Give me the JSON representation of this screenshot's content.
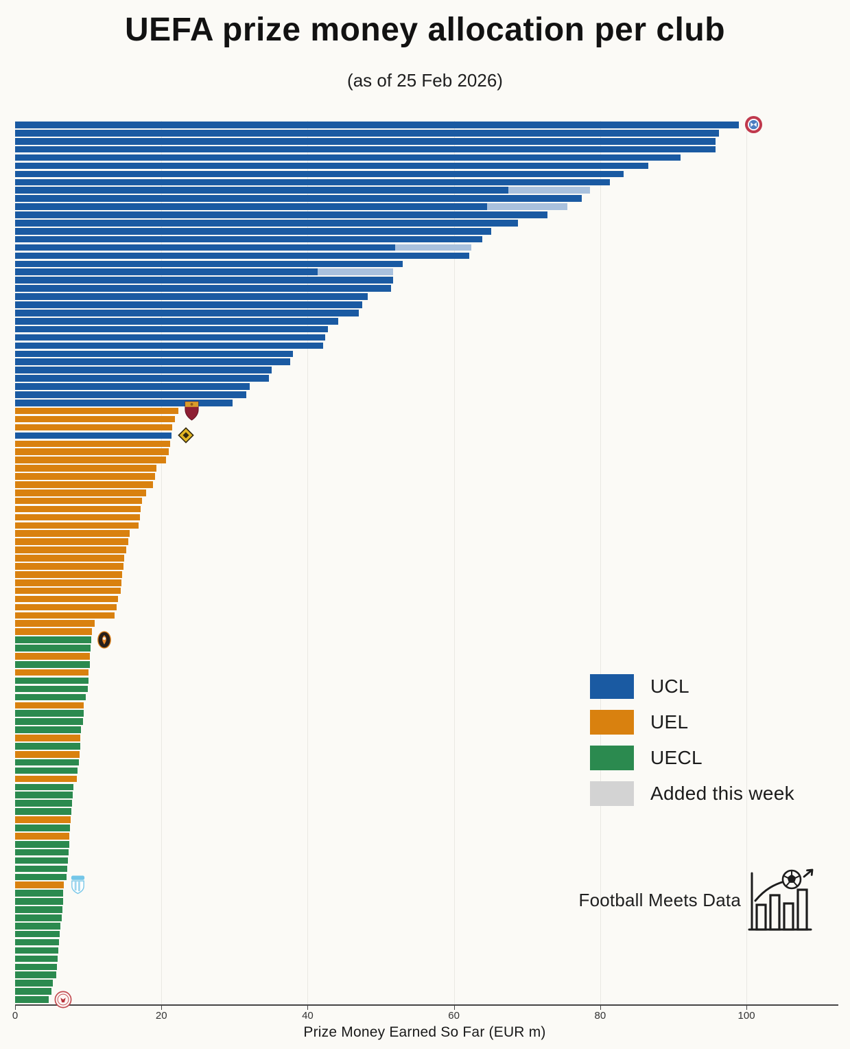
{
  "title": "UEFA prize money allocation per club",
  "subtitle": "(as of 25 Feb 2026)",
  "branding": {
    "text": "Football Meets Data"
  },
  "colors": {
    "UCL": "#1a5aa2",
    "UEL": "#d9810f",
    "UECL": "#2b8a4f",
    "added": "#a9c1dd",
    "grid": "#e9e8e3",
    "axis": "#454545",
    "background": "#fbfaf6"
  },
  "chart_data": {
    "type": "bar",
    "orientation": "horizontal",
    "title": "UEFA prize money allocation per club",
    "subtitle": "(as of 25 Feb 2026)",
    "xlabel": "Prize Money Earned So Far (EUR m)",
    "ylabel": "",
    "xlim": [
      0,
      112
    ],
    "x_ticks": [
      0,
      20,
      40,
      60,
      80,
      100
    ],
    "grid": true,
    "legend_position": "center-right",
    "legend": [
      {
        "label": "UCL",
        "color": "#1a5aa2"
      },
      {
        "label": "UEL",
        "color": "#d9810f"
      },
      {
        "label": "UECL",
        "color": "#2b8a4f"
      },
      {
        "label": "Added this week",
        "color": "#d3d3d3"
      }
    ],
    "bar_fields": [
      "value_eur_m",
      "competition",
      "added_this_week_eur_m",
      "club_badge"
    ],
    "bars": [
      [
        99.0,
        "UCL",
        0,
        "bayern-munich"
      ],
      [
        96.2,
        "UCL",
        0,
        null
      ],
      [
        95.8,
        "UCL",
        0,
        null
      ],
      [
        95.8,
        "UCL",
        0,
        null
      ],
      [
        91.0,
        "UCL",
        0,
        null
      ],
      [
        86.6,
        "UCL",
        0,
        null
      ],
      [
        83.2,
        "UCL",
        0,
        null
      ],
      [
        81.3,
        "UCL",
        0,
        null
      ],
      [
        67.4,
        "UCL",
        11.2,
        null
      ],
      [
        77.5,
        "UCL",
        0,
        null
      ],
      [
        64.5,
        "UCL",
        11.0,
        null
      ],
      [
        72.8,
        "UCL",
        0,
        null
      ],
      [
        68.8,
        "UCL",
        0,
        null
      ],
      [
        65.1,
        "UCL",
        0,
        null
      ],
      [
        63.9,
        "UCL",
        0,
        null
      ],
      [
        52.0,
        "UCL",
        10.4,
        null
      ],
      [
        62.1,
        "UCL",
        0,
        null
      ],
      [
        53.0,
        "UCL",
        0,
        null
      ],
      [
        41.4,
        "UCL",
        10.3,
        null
      ],
      [
        51.7,
        "UCL",
        0,
        null
      ],
      [
        51.4,
        "UCL",
        0,
        null
      ],
      [
        48.2,
        "UCL",
        0,
        null
      ],
      [
        47.5,
        "UCL",
        0,
        null
      ],
      [
        47.0,
        "UCL",
        0,
        null
      ],
      [
        44.2,
        "UCL",
        0,
        null
      ],
      [
        42.8,
        "UCL",
        0,
        null
      ],
      [
        42.4,
        "UCL",
        0,
        null
      ],
      [
        42.1,
        "UCL",
        0,
        null
      ],
      [
        38.0,
        "UCL",
        0,
        null
      ],
      [
        37.6,
        "UCL",
        0,
        null
      ],
      [
        35.1,
        "UCL",
        0,
        null
      ],
      [
        34.7,
        "UCL",
        0,
        null
      ],
      [
        32.1,
        "UCL",
        0,
        null
      ],
      [
        31.6,
        "UCL",
        0,
        null
      ],
      [
        29.7,
        "UCL",
        0,
        null
      ],
      [
        22.3,
        "UEL",
        0,
        "as-roma"
      ],
      [
        21.9,
        "UEL",
        0,
        null
      ],
      [
        21.5,
        "UEL",
        0,
        null
      ],
      [
        21.4,
        "UCL",
        0,
        "kairat-almaty"
      ],
      [
        21.2,
        "UEL",
        0,
        null
      ],
      [
        21.0,
        "UEL",
        0,
        null
      ],
      [
        20.6,
        "UEL",
        0,
        null
      ],
      [
        19.3,
        "UEL",
        0,
        null
      ],
      [
        19.1,
        "UEL",
        0,
        null
      ],
      [
        18.9,
        "UEL",
        0,
        null
      ],
      [
        17.9,
        "UEL",
        0,
        null
      ],
      [
        17.4,
        "UEL",
        0,
        null
      ],
      [
        17.2,
        "UEL",
        0,
        null
      ],
      [
        17.1,
        "UEL",
        0,
        null
      ],
      [
        16.9,
        "UEL",
        0,
        null
      ],
      [
        15.7,
        "UEL",
        0,
        null
      ],
      [
        15.5,
        "UEL",
        0,
        null
      ],
      [
        15.2,
        "UEL",
        0,
        null
      ],
      [
        14.9,
        "UEL",
        0,
        null
      ],
      [
        14.8,
        "UEL",
        0,
        null
      ],
      [
        14.6,
        "UEL",
        0,
        null
      ],
      [
        14.5,
        "UEL",
        0,
        null
      ],
      [
        14.4,
        "UEL",
        0,
        null
      ],
      [
        14.1,
        "UEL",
        0,
        null
      ],
      [
        13.9,
        "UEL",
        0,
        null
      ],
      [
        13.6,
        "UEL",
        0,
        null
      ],
      [
        10.9,
        "UEL",
        0,
        null
      ],
      [
        10.5,
        "UEL",
        0,
        null
      ],
      [
        10.4,
        "UECL",
        0,
        "shakhtar-donetsk"
      ],
      [
        10.3,
        "UECL",
        0,
        null
      ],
      [
        10.2,
        "UEL",
        0,
        null
      ],
      [
        10.2,
        "UECL",
        0,
        null
      ],
      [
        10.0,
        "UEL",
        0,
        null
      ],
      [
        10.0,
        "UECL",
        0,
        null
      ],
      [
        9.9,
        "UECL",
        0,
        null
      ],
      [
        9.7,
        "UECL",
        0,
        null
      ],
      [
        9.4,
        "UEL",
        0,
        null
      ],
      [
        9.4,
        "UECL",
        0,
        null
      ],
      [
        9.3,
        "UECL",
        0,
        null
      ],
      [
        9.0,
        "UECL",
        0,
        null
      ],
      [
        8.9,
        "UEL",
        0,
        null
      ],
      [
        8.9,
        "UECL",
        0,
        null
      ],
      [
        8.8,
        "UEL",
        0,
        null
      ],
      [
        8.7,
        "UECL",
        0,
        null
      ],
      [
        8.5,
        "UECL",
        0,
        null
      ],
      [
        8.4,
        "UEL",
        0,
        null
      ],
      [
        8.0,
        "UECL",
        0,
        null
      ],
      [
        7.9,
        "UECL",
        0,
        null
      ],
      [
        7.8,
        "UECL",
        0,
        null
      ],
      [
        7.7,
        "UECL",
        0,
        null
      ],
      [
        7.6,
        "UEL",
        0,
        null
      ],
      [
        7.5,
        "UECL",
        0,
        null
      ],
      [
        7.4,
        "UEL",
        0,
        null
      ],
      [
        7.4,
        "UECL",
        0,
        null
      ],
      [
        7.3,
        "UECL",
        0,
        null
      ],
      [
        7.2,
        "UECL",
        0,
        null
      ],
      [
        7.1,
        "UECL",
        0,
        null
      ],
      [
        7.0,
        "UECL",
        0,
        null
      ],
      [
        6.7,
        "UEL",
        0,
        "malmo-ff"
      ],
      [
        6.6,
        "UECL",
        0,
        null
      ],
      [
        6.6,
        "UECL",
        0,
        null
      ],
      [
        6.5,
        "UECL",
        0,
        null
      ],
      [
        6.4,
        "UECL",
        0,
        null
      ],
      [
        6.2,
        "UECL",
        0,
        null
      ],
      [
        6.1,
        "UECL",
        0,
        null
      ],
      [
        6.0,
        "UECL",
        0,
        null
      ],
      [
        5.9,
        "UECL",
        0,
        null
      ],
      [
        5.8,
        "UECL",
        0,
        null
      ],
      [
        5.7,
        "UECL",
        0,
        null
      ],
      [
        5.6,
        "UECL",
        0,
        null
      ],
      [
        5.2,
        "UECL",
        0,
        null
      ],
      [
        5.0,
        "UECL",
        0,
        null
      ],
      [
        4.6,
        "UECL",
        0,
        "unknown-club"
      ]
    ]
  }
}
